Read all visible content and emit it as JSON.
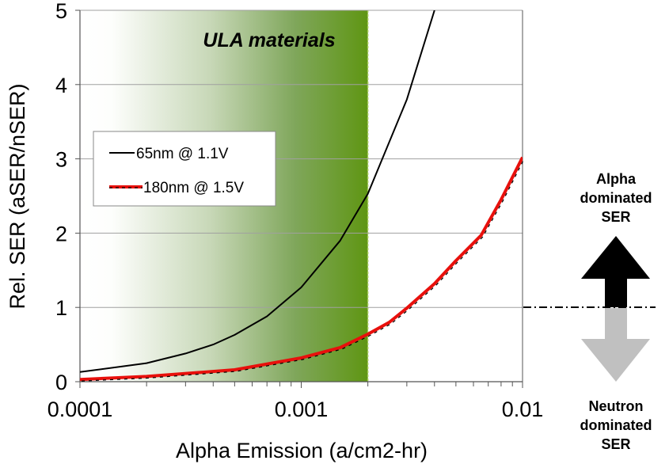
{
  "chart_data": {
    "type": "line",
    "xscale": "log",
    "title": "",
    "xlabel": "Alpha Emission (a/cm2-hr)",
    "ylabel": "Rel. SER (aSER/nSER)",
    "xlim": [
      0.0001,
      0.01
    ],
    "ylim": [
      0,
      5
    ],
    "grid": true,
    "x_ticks": [
      {
        "value": 0.0001,
        "label": "0.0001"
      },
      {
        "value": 0.001,
        "label": "0.001"
      },
      {
        "value": 0.01,
        "label": "0.01"
      }
    ],
    "y_ticks": [
      {
        "value": 0,
        "label": "0"
      },
      {
        "value": 1,
        "label": "1"
      },
      {
        "value": 2,
        "label": "2"
      },
      {
        "value": 3,
        "label": "3"
      },
      {
        "value": 4,
        "label": "4"
      },
      {
        "value": 5,
        "label": "5"
      }
    ],
    "legend_position": "middle-left",
    "series": [
      {
        "name": "65nm @ 1.1V",
        "color": "#000000",
        "x": [
          0.0001,
          0.0002,
          0.0003,
          0.0004,
          0.0005,
          0.0007,
          0.001,
          0.0015,
          0.002,
          0.003,
          0.004
        ],
        "y": [
          0.13,
          0.25,
          0.38,
          0.5,
          0.63,
          0.88,
          1.27,
          1.9,
          2.53,
          3.8,
          5.0
        ]
      },
      {
        "name": "180nm @ 1.5V",
        "color": "#e8100c",
        "dashed_overlay": true,
        "x": [
          0.0001,
          0.0002,
          0.0005,
          0.001,
          0.0015,
          0.002,
          0.0025,
          0.003,
          0.004,
          0.005,
          0.0065,
          0.008,
          0.01
        ],
        "y": [
          0.03,
          0.07,
          0.16,
          0.32,
          0.46,
          0.64,
          0.8,
          0.99,
          1.32,
          1.63,
          1.97,
          2.45,
          3.02
        ]
      }
    ],
    "annotations": {
      "shaded_region": {
        "label": "ULA materials",
        "x_from": 0.0001,
        "x_to": 0.002,
        "color": "#5f9613"
      },
      "reference_line": {
        "y": 1,
        "style": "dash-dot"
      },
      "up_arrow": {
        "label_lines": [
          "Alpha",
          "dominated",
          "SER"
        ],
        "color": "#000000"
      },
      "down_arrow": {
        "label_lines": [
          "Neutron",
          "dominated",
          "SER"
        ],
        "color": "#c0c0c0"
      }
    }
  }
}
